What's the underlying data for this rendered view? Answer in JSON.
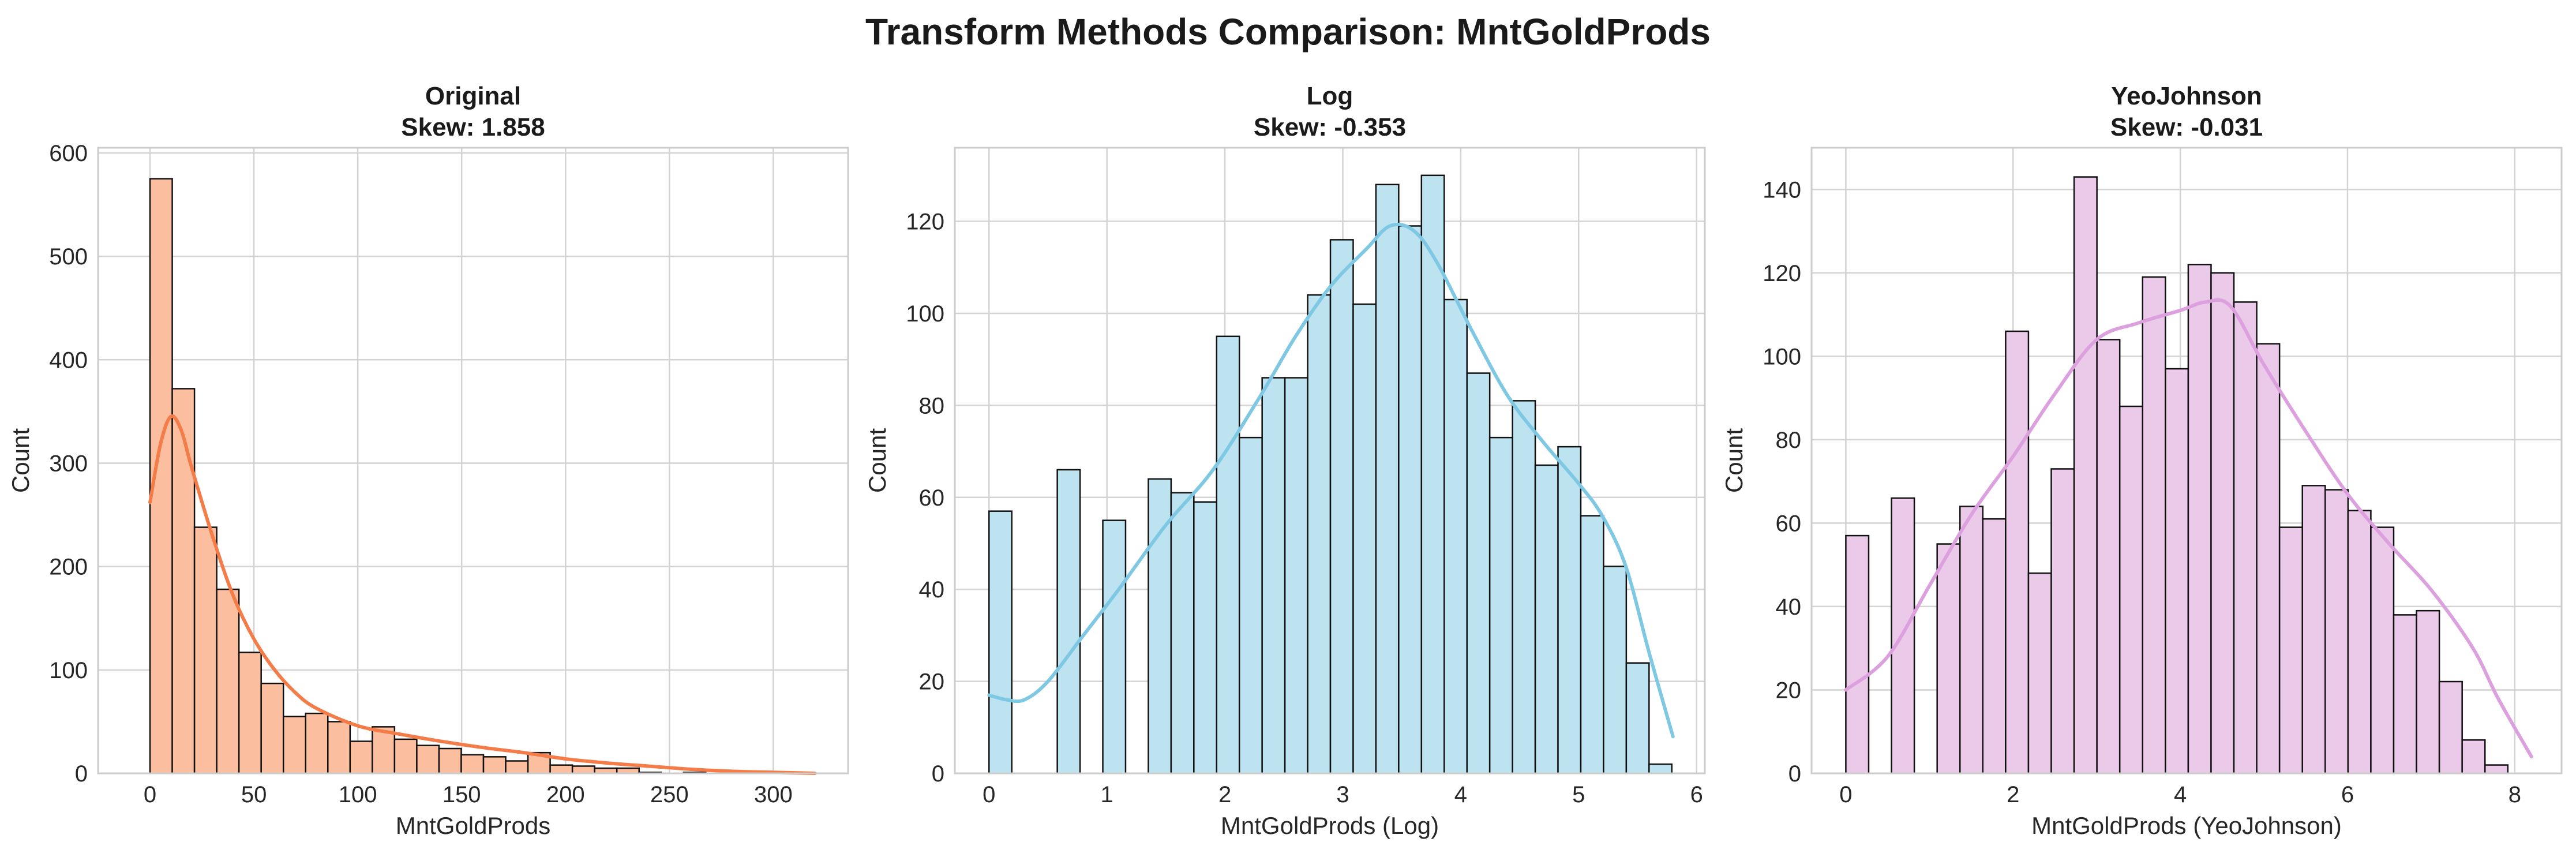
{
  "figure": {
    "title": "Transform Methods Comparison: MntGoldProds"
  },
  "colors": {
    "grid": "#d3d3d3",
    "spine": "#cccccc",
    "bar_edge": "#111111"
  },
  "chart_data": [
    {
      "type": "histogram",
      "title": "Original",
      "subtitle": "Skew: 1.858",
      "xlabel": "MntGoldProds",
      "ylabel": "Count",
      "xlim": [
        -25,
        336
      ],
      "ylim": [
        0,
        605
      ],
      "xticks": [
        0,
        50,
        100,
        150,
        200,
        250,
        300
      ],
      "yticks": [
        0,
        100,
        200,
        300,
        400,
        500,
        600
      ],
      "grid": true,
      "fill": "#fbbfa0",
      "line_color": "#f47c48",
      "bins": {
        "start": 0,
        "width": 10.7,
        "counts": [
          575,
          372,
          238,
          178,
          117,
          87,
          55,
          58,
          50,
          31,
          45,
          33,
          27,
          24,
          18,
          16,
          12,
          20,
          8,
          7,
          5,
          5,
          1,
          0,
          1,
          0,
          0,
          0,
          0,
          0
        ]
      },
      "kde": [
        [
          0,
          262
        ],
        [
          5,
          318
        ],
        [
          10,
          345
        ],
        [
          15,
          332
        ],
        [
          20,
          296
        ],
        [
          30,
          230
        ],
        [
          40,
          172
        ],
        [
          50,
          130
        ],
        [
          60,
          100
        ],
        [
          70,
          78
        ],
        [
          80,
          63
        ],
        [
          100,
          46
        ],
        [
          120,
          38
        ],
        [
          140,
          31
        ],
        [
          160,
          25
        ],
        [
          180,
          20
        ],
        [
          200,
          14
        ],
        [
          220,
          10
        ],
        [
          240,
          7
        ],
        [
          260,
          4
        ],
        [
          280,
          2
        ],
        [
          300,
          1
        ],
        [
          320,
          0
        ]
      ]
    },
    {
      "type": "histogram",
      "title": "Log",
      "subtitle": "Skew: -0.353",
      "xlabel": "MntGoldProds (Log)",
      "ylabel": "Count",
      "xlim": [
        -0.29,
        6.07
      ],
      "ylim": [
        0,
        136
      ],
      "xticks": [
        0,
        1,
        2,
        3,
        4,
        5,
        6
      ],
      "yticks": [
        0,
        20,
        40,
        60,
        80,
        100,
        120
      ],
      "grid": true,
      "fill": "#bde3f0",
      "line_color": "#7ec8e3",
      "bins": {
        "start": 0,
        "width": 0.193,
        "counts": [
          57,
          0,
          0,
          66,
          0,
          55,
          0,
          64,
          61,
          59,
          95,
          73,
          86,
          86,
          104,
          116,
          102,
          128,
          119,
          130,
          103,
          87,
          73,
          81,
          67,
          71,
          56,
          45,
          24,
          2
        ]
      },
      "kde": [
        [
          0,
          17
        ],
        [
          0.15,
          16
        ],
        [
          0.3,
          16
        ],
        [
          0.5,
          20
        ],
        [
          0.8,
          30
        ],
        [
          1.1,
          40
        ],
        [
          1.5,
          54
        ],
        [
          1.9,
          66
        ],
        [
          2.3,
          82
        ],
        [
          2.6,
          95
        ],
        [
          2.9,
          106
        ],
        [
          3.2,
          114
        ],
        [
          3.4,
          119
        ],
        [
          3.6,
          118
        ],
        [
          3.8,
          111
        ],
        [
          4.1,
          96
        ],
        [
          4.4,
          82
        ],
        [
          4.7,
          72
        ],
        [
          5.0,
          63
        ],
        [
          5.2,
          56
        ],
        [
          5.4,
          45
        ],
        [
          5.6,
          26
        ],
        [
          5.8,
          8
        ]
      ]
    },
    {
      "type": "histogram",
      "title": "YeoJohnson",
      "subtitle": "Skew: -0.031",
      "xlabel": "MntGoldProds (YeoJohnson)",
      "ylabel": "Count",
      "xlim": [
        -0.41,
        8.56
      ],
      "ylim": [
        0,
        150
      ],
      "xticks": [
        0,
        2,
        4,
        6,
        8
      ],
      "yticks": [
        0,
        20,
        40,
        60,
        80,
        100,
        120,
        140
      ],
      "grid": true,
      "fill": "#ebc9e9",
      "line_color": "#dba0dd",
      "bins": {
        "start": 0,
        "width": 0.273,
        "counts": [
          57,
          0,
          66,
          0,
          55,
          64,
          61,
          106,
          48,
          73,
          143,
          104,
          88,
          119,
          97,
          122,
          120,
          113,
          103,
          59,
          69,
          68,
          63,
          59,
          38,
          39,
          22,
          8,
          2,
          0
        ]
      },
      "kde": [
        [
          0,
          20
        ],
        [
          0.5,
          28
        ],
        [
          1.0,
          45
        ],
        [
          1.5,
          62
        ],
        [
          2.0,
          76
        ],
        [
          2.5,
          91
        ],
        [
          3.0,
          104
        ],
        [
          3.5,
          108
        ],
        [
          4.0,
          111
        ],
        [
          4.3,
          113
        ],
        [
          4.6,
          112
        ],
        [
          5.0,
          98
        ],
        [
          5.5,
          82
        ],
        [
          6.0,
          67
        ],
        [
          6.5,
          55
        ],
        [
          7.0,
          44
        ],
        [
          7.5,
          30
        ],
        [
          7.8,
          18
        ],
        [
          8.2,
          4
        ]
      ]
    }
  ]
}
